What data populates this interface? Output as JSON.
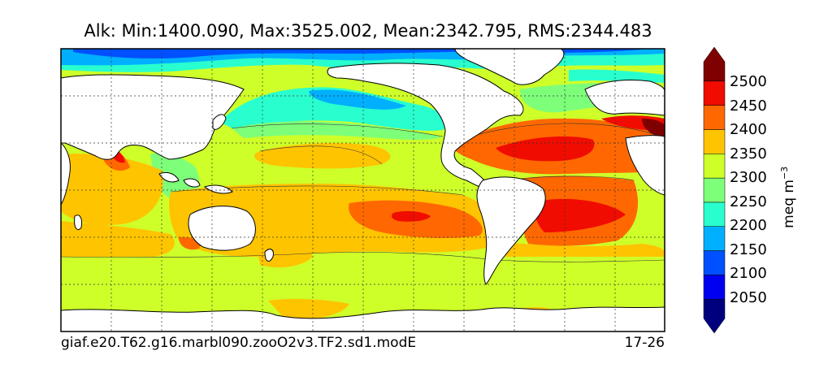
{
  "title": "Alk: Min:1400.090, Max:3525.002, Mean:2342.795, RMS:2344.483",
  "footer": {
    "case_name": "giaf.e20.T62.g16.marbl090.zooO2v3.TF2.sd1.modE",
    "years": "17-26"
  },
  "colorbar": {
    "units_main": "meq m",
    "units_exp": "−3",
    "tick_labels": [
      "2500",
      "2450",
      "2400",
      "2350",
      "2300",
      "2250",
      "2200",
      "2150",
      "2100",
      "2050"
    ],
    "levels": [
      {
        "range": "<2050",
        "color": "#00007f"
      },
      {
        "range": "2050-2100",
        "color": "#0000f0"
      },
      {
        "range": "2100-2150",
        "color": "#0050ff"
      },
      {
        "range": "2150-2200",
        "color": "#00b0ff"
      },
      {
        "range": "2200-2250",
        "color": "#29ffce"
      },
      {
        "range": "2250-2300",
        "color": "#7dff7a"
      },
      {
        "range": "2300-2350",
        "color": "#ceff29"
      },
      {
        "range": "2350-2400",
        "color": "#ffc400"
      },
      {
        "range": "2400-2450",
        "color": "#ff6800"
      },
      {
        "range": "2450-2500",
        "color": "#f00c00"
      },
      {
        "range": ">2500",
        "color": "#7f0000"
      }
    ]
  },
  "map": {
    "projection": "equirectangular",
    "grid": "dashed"
  }
}
